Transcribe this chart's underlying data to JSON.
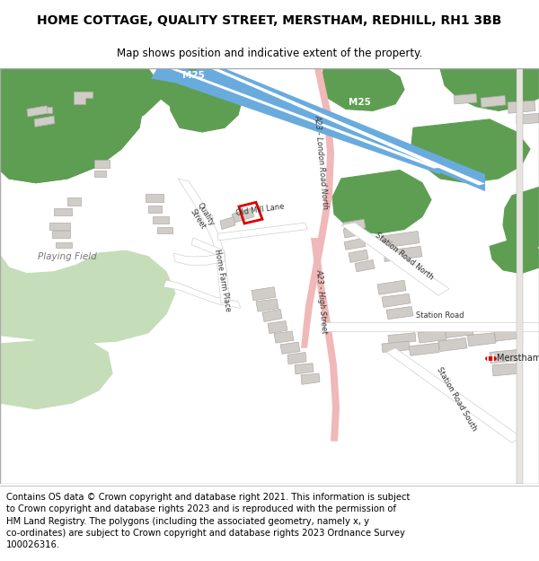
{
  "title": "HOME COTTAGE, QUALITY STREET, MERSTHAM, REDHILL, RH1 3BB",
  "subtitle": "Map shows position and indicative extent of the property.",
  "footer": "Contains OS data © Crown copyright and database right 2021. This information is subject\nto Crown copyright and database rights 2023 and is reproduced with the permission of\nHM Land Registry. The polygons (including the associated geometry, namely x, y\nco-ordinates) are subject to Crown copyright and database rights 2023 Ordnance Survey\n100026316.",
  "bg_color": "#ffffff",
  "map_bg": "#f2f0ed",
  "green_color": "#5e9e52",
  "road_pink": "#f0b8b8",
  "motorway_blue": "#6aabde",
  "building_color": "#d0ccc8",
  "building_outline": "#b0aca8",
  "light_green": "#c5ddb8",
  "red_plot": "#dd0000",
  "railway_gray": "#888888",
  "title_fontsize": 10,
  "subtitle_fontsize": 8.5,
  "footer_fontsize": 7.2
}
